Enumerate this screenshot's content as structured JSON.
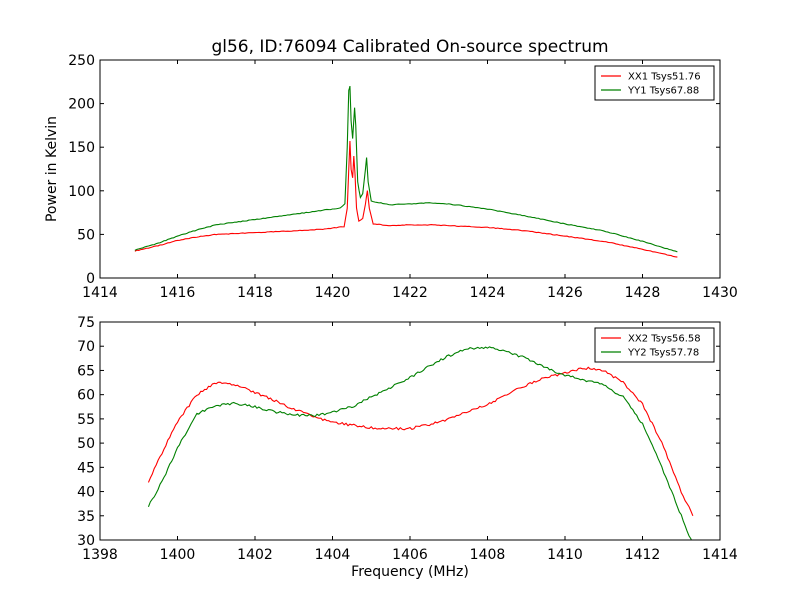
{
  "figure_title": "gl56, ID:76094 Calibrated On-source spectrum",
  "chart_data": [
    {
      "type": "line",
      "title": "gl56, ID:76094 Calibrated On-source spectrum",
      "xlabel": "",
      "ylabel": "Power in Kelvin",
      "xlim": [
        1414,
        1430
      ],
      "ylim": [
        0,
        250
      ],
      "xticks": [
        "1414",
        "1416",
        "1418",
        "1420",
        "1422",
        "1424",
        "1426",
        "1428",
        "1430"
      ],
      "yticks": [
        "0",
        "50",
        "100",
        "150",
        "200",
        "250"
      ],
      "grid": false,
      "legend_position": "top-right",
      "series": [
        {
          "name": "XX1 Tsys51.76",
          "color": "#ff0000",
          "points": [
            [
              1414.9,
              31
            ],
            [
              1415.5,
              37
            ],
            [
              1416,
              43
            ],
            [
              1416.5,
              47
            ],
            [
              1417,
              50
            ],
            [
              1418,
              52
            ],
            [
              1419,
              54
            ],
            [
              1419.8,
              56
            ],
            [
              1420.3,
              59
            ],
            [
              1420.38,
              80
            ],
            [
              1420.42,
              125
            ],
            [
              1420.45,
              157
            ],
            [
              1420.48,
              125
            ],
            [
              1420.52,
              115
            ],
            [
              1420.55,
              140
            ],
            [
              1420.58,
              120
            ],
            [
              1420.62,
              80
            ],
            [
              1420.68,
              65
            ],
            [
              1420.78,
              68
            ],
            [
              1420.85,
              85
            ],
            [
              1420.9,
              100
            ],
            [
              1420.95,
              80
            ],
            [
              1421.05,
              62
            ],
            [
              1421.5,
              60
            ],
            [
              1422,
              61
            ],
            [
              1422.5,
              61
            ],
            [
              1423,
              60
            ],
            [
              1424,
              58
            ],
            [
              1425,
              54
            ],
            [
              1426,
              48
            ],
            [
              1427,
              42
            ],
            [
              1428,
              33
            ],
            [
              1428.9,
              24
            ]
          ]
        },
        {
          "name": "YY1 Tsys67.88",
          "color": "#008000",
          "points": [
            [
              1414.9,
              32
            ],
            [
              1415.5,
              40
            ],
            [
              1416,
              48
            ],
            [
              1416.5,
              55
            ],
            [
              1417,
              61
            ],
            [
              1418,
              67
            ],
            [
              1419,
              73
            ],
            [
              1419.8,
              78
            ],
            [
              1420.2,
              80
            ],
            [
              1420.32,
              85
            ],
            [
              1420.38,
              150
            ],
            [
              1420.42,
              215
            ],
            [
              1420.45,
              220
            ],
            [
              1420.48,
              180
            ],
            [
              1420.52,
              160
            ],
            [
              1420.57,
              195
            ],
            [
              1420.6,
              175
            ],
            [
              1420.65,
              110
            ],
            [
              1420.72,
              92
            ],
            [
              1420.78,
              97
            ],
            [
              1420.85,
              125
            ],
            [
              1420.88,
              138
            ],
            [
              1420.92,
              110
            ],
            [
              1421,
              88
            ],
            [
              1421.5,
              84
            ],
            [
              1422,
              85
            ],
            [
              1422.5,
              86
            ],
            [
              1423,
              85
            ],
            [
              1424,
              79
            ],
            [
              1425,
              71
            ],
            [
              1426,
              62
            ],
            [
              1427,
              54
            ],
            [
              1428,
              42
            ],
            [
              1428.9,
              30
            ]
          ]
        }
      ]
    },
    {
      "type": "line",
      "title": "",
      "xlabel": "Frequency (MHz)",
      "ylabel": "",
      "xlim": [
        1398,
        1414
      ],
      "ylim": [
        30,
        75
      ],
      "xticks": [
        "1398",
        "1400",
        "1402",
        "1404",
        "1406",
        "1408",
        "1410",
        "1412",
        "1414"
      ],
      "yticks": [
        "30",
        "35",
        "40",
        "45",
        "50",
        "55",
        "60",
        "65",
        "70",
        "75"
      ],
      "grid": false,
      "legend_position": "top-right",
      "series": [
        {
          "name": "XX2 Tsys56.58",
          "color": "#ff0000",
          "points": [
            [
              1399.25,
              42
            ],
            [
              1399.6,
              48
            ],
            [
              1400,
              54.5
            ],
            [
              1400.5,
              60
            ],
            [
              1401,
              62.5
            ],
            [
              1401.5,
              62
            ],
            [
              1402,
              60.5
            ],
            [
              1402.5,
              58.8
            ],
            [
              1403,
              57
            ],
            [
              1403.5,
              55.5
            ],
            [
              1404,
              54.3
            ],
            [
              1404.5,
              53.7
            ],
            [
              1405,
              53.2
            ],
            [
              1405.5,
              53
            ],
            [
              1406,
              53
            ],
            [
              1406.5,
              53.8
            ],
            [
              1407,
              55
            ],
            [
              1407.5,
              56.5
            ],
            [
              1408,
              58
            ],
            [
              1408.5,
              60
            ],
            [
              1409,
              62
            ],
            [
              1409.5,
              63.5
            ],
            [
              1410,
              64.5
            ],
            [
              1410.5,
              65.5
            ],
            [
              1411,
              65
            ],
            [
              1411.5,
              62.5
            ],
            [
              1412,
              58
            ],
            [
              1412.5,
              50
            ],
            [
              1413,
              40
            ],
            [
              1413.3,
              35
            ]
          ]
        },
        {
          "name": "YY2 Tsys57.78",
          "color": "#008000",
          "points": [
            [
              1399.25,
              37
            ],
            [
              1399.6,
              42
            ],
            [
              1400,
              49
            ],
            [
              1400.5,
              56
            ],
            [
              1401,
              57.8
            ],
            [
              1401.5,
              58.2
            ],
            [
              1402,
              57.5
            ],
            [
              1402.5,
              56.5
            ],
            [
              1403,
              55.8
            ],
            [
              1403.5,
              55.6
            ],
            [
              1404,
              56.3
            ],
            [
              1404.5,
              57.5
            ],
            [
              1405,
              59.5
            ],
            [
              1405.5,
              61.5
            ],
            [
              1406,
              63.5
            ],
            [
              1406.5,
              66
            ],
            [
              1407,
              68
            ],
            [
              1407.5,
              69.5
            ],
            [
              1408,
              69.8
            ],
            [
              1408.5,
              68.8
            ],
            [
              1409,
              67.5
            ],
            [
              1409.5,
              65.5
            ],
            [
              1410,
              64
            ],
            [
              1410.5,
              63
            ],
            [
              1411,
              62
            ],
            [
              1411.5,
              59.5
            ],
            [
              1412,
              54
            ],
            [
              1412.5,
              45
            ],
            [
              1413,
              35
            ],
            [
              1413.3,
              29
            ]
          ]
        }
      ]
    }
  ]
}
